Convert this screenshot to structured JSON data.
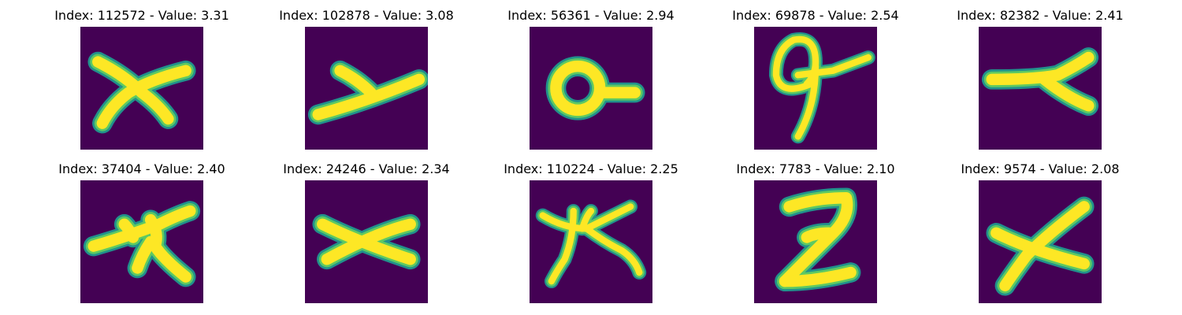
{
  "colors": {
    "background": "#440154",
    "stroke_edge": "#21918c",
    "stroke_mid": "#5ec962",
    "stroke_core": "#fde725"
  },
  "panels": [
    {
      "title": "Index: 112572 - Value: 3.31",
      "glyph": "x-shape"
    },
    {
      "title": "Index: 102878 - Value: 3.08",
      "glyph": "y-shape"
    },
    {
      "title": "Index: 56361 - Value: 2.94",
      "glyph": "ring-with-tail"
    },
    {
      "title": "Index: 69878 - Value: 2.54",
      "glyph": "nine-loop-with-crossbar"
    },
    {
      "title": "Index: 82382 - Value: 2.41",
      "glyph": "bent-bar"
    },
    {
      "title": "Index: 37404 - Value: 2.40",
      "glyph": "star-with-legs"
    },
    {
      "title": "Index: 24246 - Value: 2.34",
      "glyph": "wide-x"
    },
    {
      "title": "Index: 110224 - Value: 2.25",
      "glyph": "branching-star"
    },
    {
      "title": "Index: 7783 - Value: 2.10",
      "glyph": "z-shape"
    },
    {
      "title": "Index: 9574 - Value: 2.08",
      "glyph": "x-shape"
    }
  ]
}
